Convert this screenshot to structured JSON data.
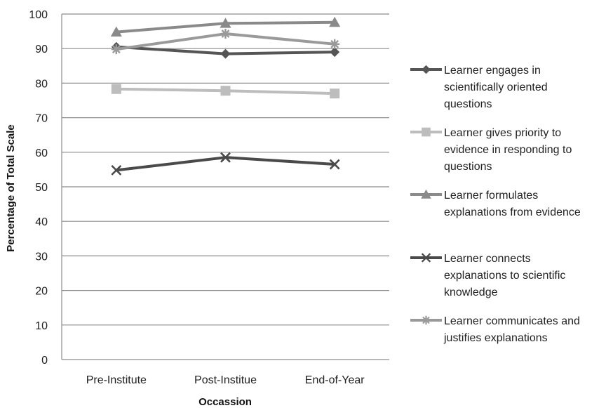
{
  "chart_data": {
    "type": "line",
    "title": "",
    "xlabel": "Occassion",
    "ylabel": "Percentage of Total Scale",
    "ylim": [
      0,
      100
    ],
    "yticks": [
      0,
      10,
      20,
      30,
      40,
      50,
      60,
      70,
      80,
      90,
      100
    ],
    "grid": "horizontal",
    "legend_position": "right",
    "categories": [
      "Pre-Institute",
      "Post-Institue",
      "End-of-Year"
    ],
    "series": [
      {
        "name": "Learner engages in scientifically oriented questions",
        "legend_lines": [
          "Learner engages in",
          "scientifically oriented",
          "questions"
        ],
        "values": [
          90.5,
          88.5,
          89
        ],
        "color": "#555555",
        "marker": "diamond"
      },
      {
        "name": "Learner gives priority to evidence in responding to questions",
        "legend_lines": [
          "Learner gives priority to",
          "evidence in responding to",
          "questions"
        ],
        "values": [
          78.3,
          77.8,
          77
        ],
        "color": "#bdbdbd",
        "marker": "square"
      },
      {
        "name": "Learner formulates explanations from evidence",
        "legend_lines": [
          "Learner formulates",
          "explanations from evidence"
        ],
        "values": [
          94.8,
          97.3,
          97.6
        ],
        "color": "#8a8a8a",
        "marker": "triangle"
      },
      {
        "name": "Learner connects explanations to scientific knowledge",
        "legend_lines": [
          "Learner connects",
          "explanations to scientific",
          "knowledge"
        ],
        "values": [
          54.8,
          58.5,
          56.5
        ],
        "color": "#4a4a4a",
        "marker": "x"
      },
      {
        "name": "Learner communicates and justifies explanations",
        "legend_lines": [
          "Learner communicates and",
          "justifies explanations"
        ],
        "values": [
          89.8,
          94.3,
          91.3
        ],
        "color": "#9a9a9a",
        "marker": "star"
      }
    ]
  }
}
